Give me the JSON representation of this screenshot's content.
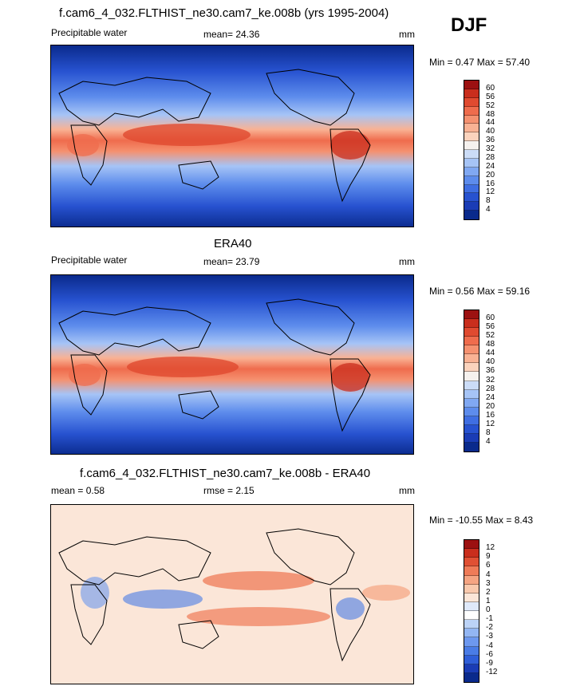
{
  "season_label": "DJF",
  "colors": {
    "seq": [
      "#0a2a8c",
      "#1a3cb5",
      "#2752d0",
      "#3f6ee2",
      "#5d8cec",
      "#80a8f2",
      "#a6c4f6",
      "#cbdcf7",
      "#f5f1ee",
      "#fbd3bd",
      "#f9b294",
      "#f59170",
      "#ef6c4d",
      "#e04a30",
      "#c92e1d",
      "#9c1111"
    ],
    "div": [
      "#0a2a8c",
      "#1a3cb5",
      "#2f5ed8",
      "#4a7ce6",
      "#6d98ef",
      "#93b6f3",
      "#bcd3f7",
      "#dfe9fa",
      "#fbe6d8",
      "#f9c9ad",
      "#f5a482",
      "#ef7b58",
      "#e05034",
      "#c92e1d",
      "#9c1111"
    ]
  },
  "chart_data": [
    {
      "type": "heatmap",
      "title": "f.cam6_4_032.FLTHIST_ne30.cam7_ke.008b (yrs 1995-2004)",
      "variable": "Precipitable water",
      "mean_label": "mean=  24.36",
      "units": "mm",
      "minmax_label": "Min =   0.47 Max =   57.40",
      "colorbar_levels": [
        "60",
        "56",
        "52",
        "48",
        "44",
        "40",
        "36",
        "32",
        "28",
        "24",
        "20",
        "16",
        "12",
        "8",
        "4"
      ]
    },
    {
      "type": "heatmap",
      "title": "ERA40",
      "variable": "Precipitable water",
      "mean_label": "mean=  23.79",
      "units": "mm",
      "minmax_label": "Min =   0.56 Max =   59.16",
      "colorbar_levels": [
        "60",
        "56",
        "52",
        "48",
        "44",
        "40",
        "36",
        "32",
        "28",
        "24",
        "20",
        "16",
        "12",
        "8",
        "4"
      ]
    },
    {
      "type": "heatmap",
      "title": "f.cam6_4_032.FLTHIST_ne30.cam7_ke.008b - ERA40",
      "mean_label": "mean =   0.58",
      "rmse_label": "rmse =   2.15",
      "units": "mm",
      "minmax_label": "Min = -10.55 Max =   8.43",
      "colorbar_levels": [
        "12",
        "9",
        "6",
        "4",
        "3",
        "2",
        "1",
        "0",
        "-1",
        "-2",
        "-3",
        "-4",
        "-6",
        "-9",
        "-12"
      ]
    }
  ]
}
